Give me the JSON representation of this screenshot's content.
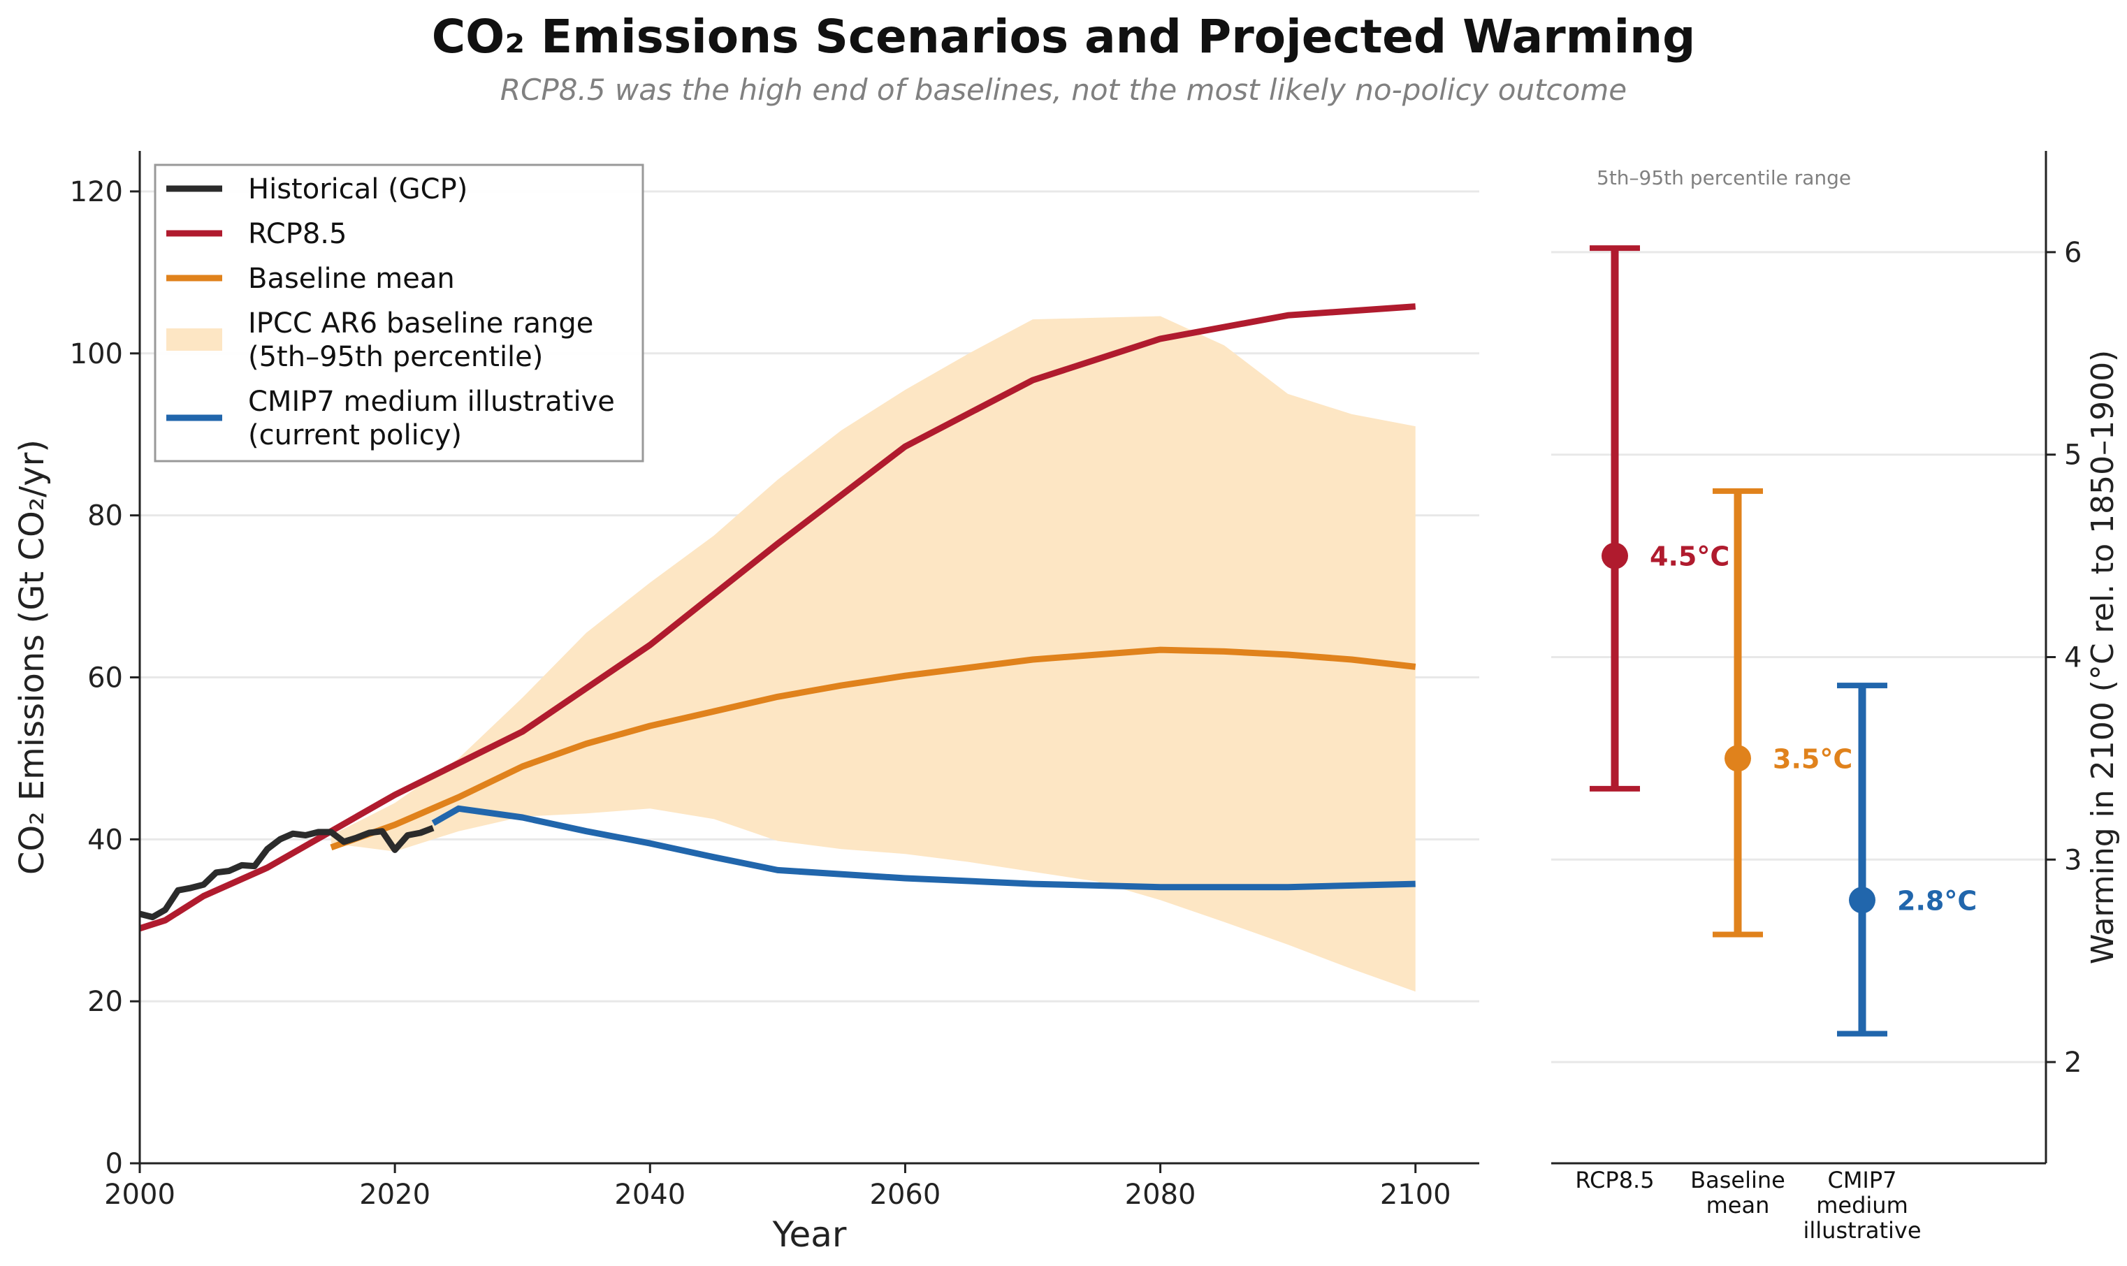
{
  "title": "CO₂ Emissions Scenarios and Projected Warming",
  "subtitle": "RCP8.5 was the high end of baselines, not the most likely no-policy outcome",
  "colors": {
    "historical": "#2b2b2b",
    "rcp85": "#b01b2e",
    "baseline": "#e0821c",
    "range_fill": "#fde6c4",
    "cmip7": "#2166ac",
    "grid": "#e8e8e8",
    "muted": "#808080"
  },
  "chart_data": [
    {
      "type": "line",
      "xlabel": "Year",
      "ylabel": "CO₂ Emissions (Gt CO₂/yr)",
      "xlim": [
        2000,
        2105
      ],
      "ylim": [
        0,
        125
      ],
      "x_ticks": [
        2000,
        2020,
        2040,
        2060,
        2080,
        2100
      ],
      "y_ticks": [
        0,
        20,
        40,
        60,
        80,
        100,
        120
      ],
      "grid": "horizontal",
      "legend_position": "top-left",
      "legend": [
        {
          "key": "historical",
          "lines": [
            "Historical (GCP)"
          ]
        },
        {
          "key": "rcp85",
          "lines": [
            "RCP8.5"
          ]
        },
        {
          "key": "baseline",
          "lines": [
            "Baseline mean"
          ]
        },
        {
          "key": "range_fill",
          "lines": [
            "IPCC AR6 baseline range",
            "(5th–95th percentile)"
          ]
        },
        {
          "key": "cmip7",
          "lines": [
            "CMIP7 medium illustrative",
            "(current policy)"
          ]
        }
      ],
      "series": [
        {
          "key": "historical",
          "name": "Historical (GCP)",
          "x": [
            2000,
            2001,
            2002,
            2003,
            2004,
            2005,
            2006,
            2007,
            2008,
            2009,
            2010,
            2011,
            2012,
            2013,
            2014,
            2015,
            2016,
            2017,
            2018,
            2019,
            2020,
            2021,
            2022,
            2023
          ],
          "y": [
            30.8,
            30.4,
            31.3,
            33.7,
            34.0,
            34.4,
            35.9,
            36.1,
            36.8,
            36.7,
            38.8,
            40.0,
            40.7,
            40.5,
            40.9,
            40.9,
            39.7,
            40.2,
            40.8,
            41.0,
            38.7,
            40.5,
            40.8,
            41.4
          ]
        },
        {
          "key": "rcp85",
          "name": "RCP8.5",
          "x": [
            2000,
            2002,
            2005,
            2010,
            2020,
            2030,
            2040,
            2050,
            2060,
            2070,
            2080,
            2090,
            2100
          ],
          "y": [
            29.0,
            30.0,
            33.0,
            36.5,
            45.5,
            53.3,
            64.0,
            76.5,
            88.5,
            96.7,
            101.8,
            104.7,
            105.8
          ]
        },
        {
          "key": "baseline",
          "name": "Baseline mean",
          "x": [
            2015,
            2020,
            2025,
            2030,
            2035,
            2040,
            2045,
            2050,
            2055,
            2060,
            2065,
            2070,
            2075,
            2080,
            2085,
            2090,
            2095,
            2100
          ],
          "y": [
            39.0,
            41.8,
            45.2,
            49.0,
            51.8,
            54.0,
            55.8,
            57.6,
            59.0,
            60.2,
            61.2,
            62.2,
            62.8,
            63.4,
            63.2,
            62.8,
            62.2,
            61.3
          ]
        },
        {
          "key": "cmip7",
          "name": "CMIP7 medium illustrative (current policy)",
          "x": [
            2023,
            2025,
            2030,
            2035,
            2040,
            2045,
            2050,
            2060,
            2070,
            2080,
            2090,
            2100
          ],
          "y": [
            42.0,
            43.8,
            42.7,
            41.0,
            39.5,
            37.8,
            36.2,
            35.2,
            34.5,
            34.1,
            34.1,
            34.5
          ]
        }
      ],
      "band": {
        "key": "range_fill",
        "name": "IPCC AR6 baseline range (5th–95th percentile)",
        "x": [
          2015,
          2020,
          2025,
          2030,
          2035,
          2040,
          2045,
          2050,
          2055,
          2060,
          2065,
          2070,
          2075,
          2080,
          2085,
          2090,
          2095,
          2100
        ],
        "upper": [
          40.5,
          44.5,
          50.0,
          57.5,
          65.5,
          71.7,
          77.5,
          84.4,
          90.5,
          95.5,
          100.0,
          104.2,
          104.4,
          104.6,
          101.0,
          95.0,
          92.5,
          91.0
        ],
        "lower": [
          39.5,
          38.5,
          41.0,
          42.8,
          43.2,
          43.8,
          42.5,
          39.8,
          38.8,
          38.2,
          37.2,
          36.0,
          34.8,
          32.5,
          29.8,
          27.0,
          24.0,
          21.2
        ]
      }
    },
    {
      "type": "errorbar",
      "ylabel": "Warming in 2100 (°C rel. to 1850–1900)",
      "ylim": [
        1.5,
        6.5
      ],
      "y_ticks": [
        2,
        3,
        4,
        5,
        6
      ],
      "y_axis_side": "right",
      "grid": "horizontal",
      "note": "5th–95th percentile range",
      "categories": [
        {
          "key": "rcp85",
          "lines": [
            "RCP8.5"
          ],
          "value": 4.5,
          "low": 3.35,
          "high": 6.02,
          "label": "4.5°C"
        },
        {
          "key": "baseline",
          "lines": [
            "Baseline",
            "mean"
          ],
          "value": 3.5,
          "low": 2.63,
          "high": 4.82,
          "label": "3.5°C"
        },
        {
          "key": "cmip7",
          "lines": [
            "CMIP7",
            "medium",
            "illustrative"
          ],
          "value": 2.8,
          "low": 2.14,
          "high": 3.86,
          "label": "2.8°C"
        }
      ]
    }
  ]
}
